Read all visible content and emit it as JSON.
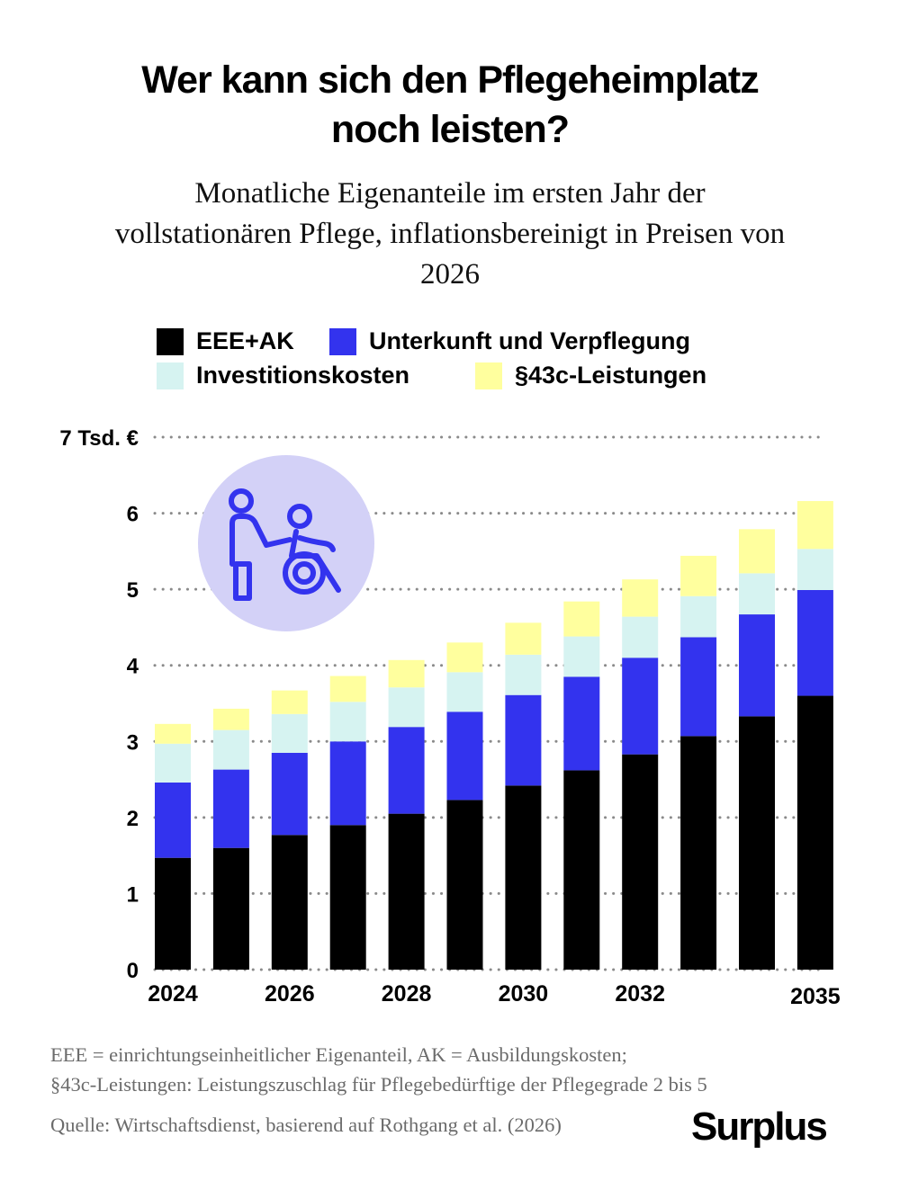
{
  "header": {
    "title_line1": "Wer kann sich den Pflegeheimplatz",
    "title_line2": "noch leisten?",
    "subtitle_line1": "Monatliche Eigenanteile im ersten Jahr der",
    "subtitle_line2": "vollstationären Pflege, inflationsbereinigt in Preisen von",
    "subtitle_line3": "2026"
  },
  "legend": [
    {
      "label": "EEE+AK",
      "color": "#000000"
    },
    {
      "label": "Unterkunft und Verpflegung",
      "color": "#3333ee"
    },
    {
      "label": "Investitionskosten",
      "color": "#d6f3f1"
    },
    {
      "label": "§43c-Leistungen",
      "color": "#ffff9e"
    }
  ],
  "icon": {
    "name": "caregiver-wheelchair-icon",
    "color": "#3333ee",
    "background": "#d3d1f7"
  },
  "chart_data": {
    "type": "bar",
    "stacked": true,
    "categories": [
      "2024",
      "2025",
      "2026",
      "2027",
      "2028",
      "2029",
      "2030",
      "2031",
      "2032",
      "2033",
      "2034",
      "2035"
    ],
    "x_tick_labels": [
      "2024",
      "",
      "2026",
      "",
      "2028",
      "",
      "2030",
      "",
      "2032",
      "",
      "",
      "2035"
    ],
    "y_tick_labels": [
      "0",
      "1",
      "2",
      "3",
      "4",
      "5",
      "6",
      "7 Tsd. €"
    ],
    "ylim": [
      0,
      7
    ],
    "grid": true,
    "legend_position": "top",
    "series": [
      {
        "name": "EEE+AK",
        "color": "#000000",
        "values": [
          1.47,
          1.6,
          1.77,
          1.9,
          2.05,
          2.23,
          2.42,
          2.62,
          2.83,
          3.07,
          3.33,
          3.6
        ]
      },
      {
        "name": "Unterkunft und Verpflegung",
        "color": "#3333ee",
        "values": [
          0.99,
          1.03,
          1.08,
          1.1,
          1.14,
          1.16,
          1.19,
          1.23,
          1.27,
          1.3,
          1.34,
          1.39
        ]
      },
      {
        "name": "Investitionskosten",
        "color": "#d6f3f1",
        "values": [
          0.51,
          0.52,
          0.51,
          0.52,
          0.52,
          0.52,
          0.53,
          0.53,
          0.54,
          0.54,
          0.54,
          0.54
        ]
      },
      {
        "name": "§43c-Leistungen",
        "color": "#ffff9e",
        "values": [
          0.26,
          0.28,
          0.31,
          0.34,
          0.36,
          0.39,
          0.42,
          0.46,
          0.49,
          0.53,
          0.58,
          0.63
        ]
      }
    ]
  },
  "footnote": {
    "line1": "EEE = einrichtungseinheitlicher Eigenanteil, AK = Ausbildungskosten;",
    "line2": "§43c-Leistungen: Leistungszuschlag für Pflegebedürftige der Pflegegrade 2 bis 5",
    "source": "Quelle: Wirtschaftsdienst, basierend auf Rothgang et al. (2026)"
  },
  "brand": {
    "logo_text": "Surplus"
  }
}
